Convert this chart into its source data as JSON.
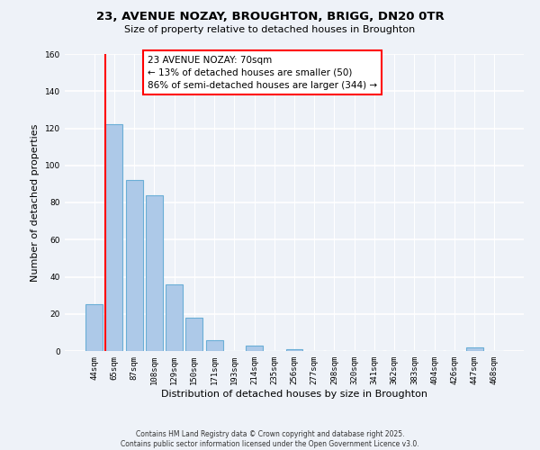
{
  "title_line1": "23, AVENUE NOZAY, BROUGHTON, BRIGG, DN20 0TR",
  "title_line2": "Size of property relative to detached houses in Broughton",
  "xlabel": "Distribution of detached houses by size in Broughton",
  "ylabel": "Number of detached properties",
  "bar_labels": [
    "44sqm",
    "65sqm",
    "87sqm",
    "108sqm",
    "129sqm",
    "150sqm",
    "171sqm",
    "193sqm",
    "214sqm",
    "235sqm",
    "256sqm",
    "277sqm",
    "298sqm",
    "320sqm",
    "341sqm",
    "362sqm",
    "383sqm",
    "404sqm",
    "426sqm",
    "447sqm",
    "468sqm"
  ],
  "bar_values": [
    25,
    122,
    92,
    84,
    36,
    18,
    6,
    0,
    3,
    0,
    1,
    0,
    0,
    0,
    0,
    0,
    0,
    0,
    0,
    2,
    0
  ],
  "bar_color": "#adc9e8",
  "bar_edge_color": "#6aaed6",
  "ylim": [
    0,
    160
  ],
  "yticks": [
    0,
    20,
    40,
    60,
    80,
    100,
    120,
    140,
    160
  ],
  "red_line_index": 1,
  "annotation_title": "23 AVENUE NOZAY: 70sqm",
  "annotation_line1": "← 13% of detached houses are smaller (50)",
  "annotation_line2": "86% of semi-detached houses are larger (344) →",
  "footer_line1": "Contains HM Land Registry data © Crown copyright and database right 2025.",
  "footer_line2": "Contains public sector information licensed under the Open Government Licence v3.0.",
  "background_color": "#eef2f8"
}
